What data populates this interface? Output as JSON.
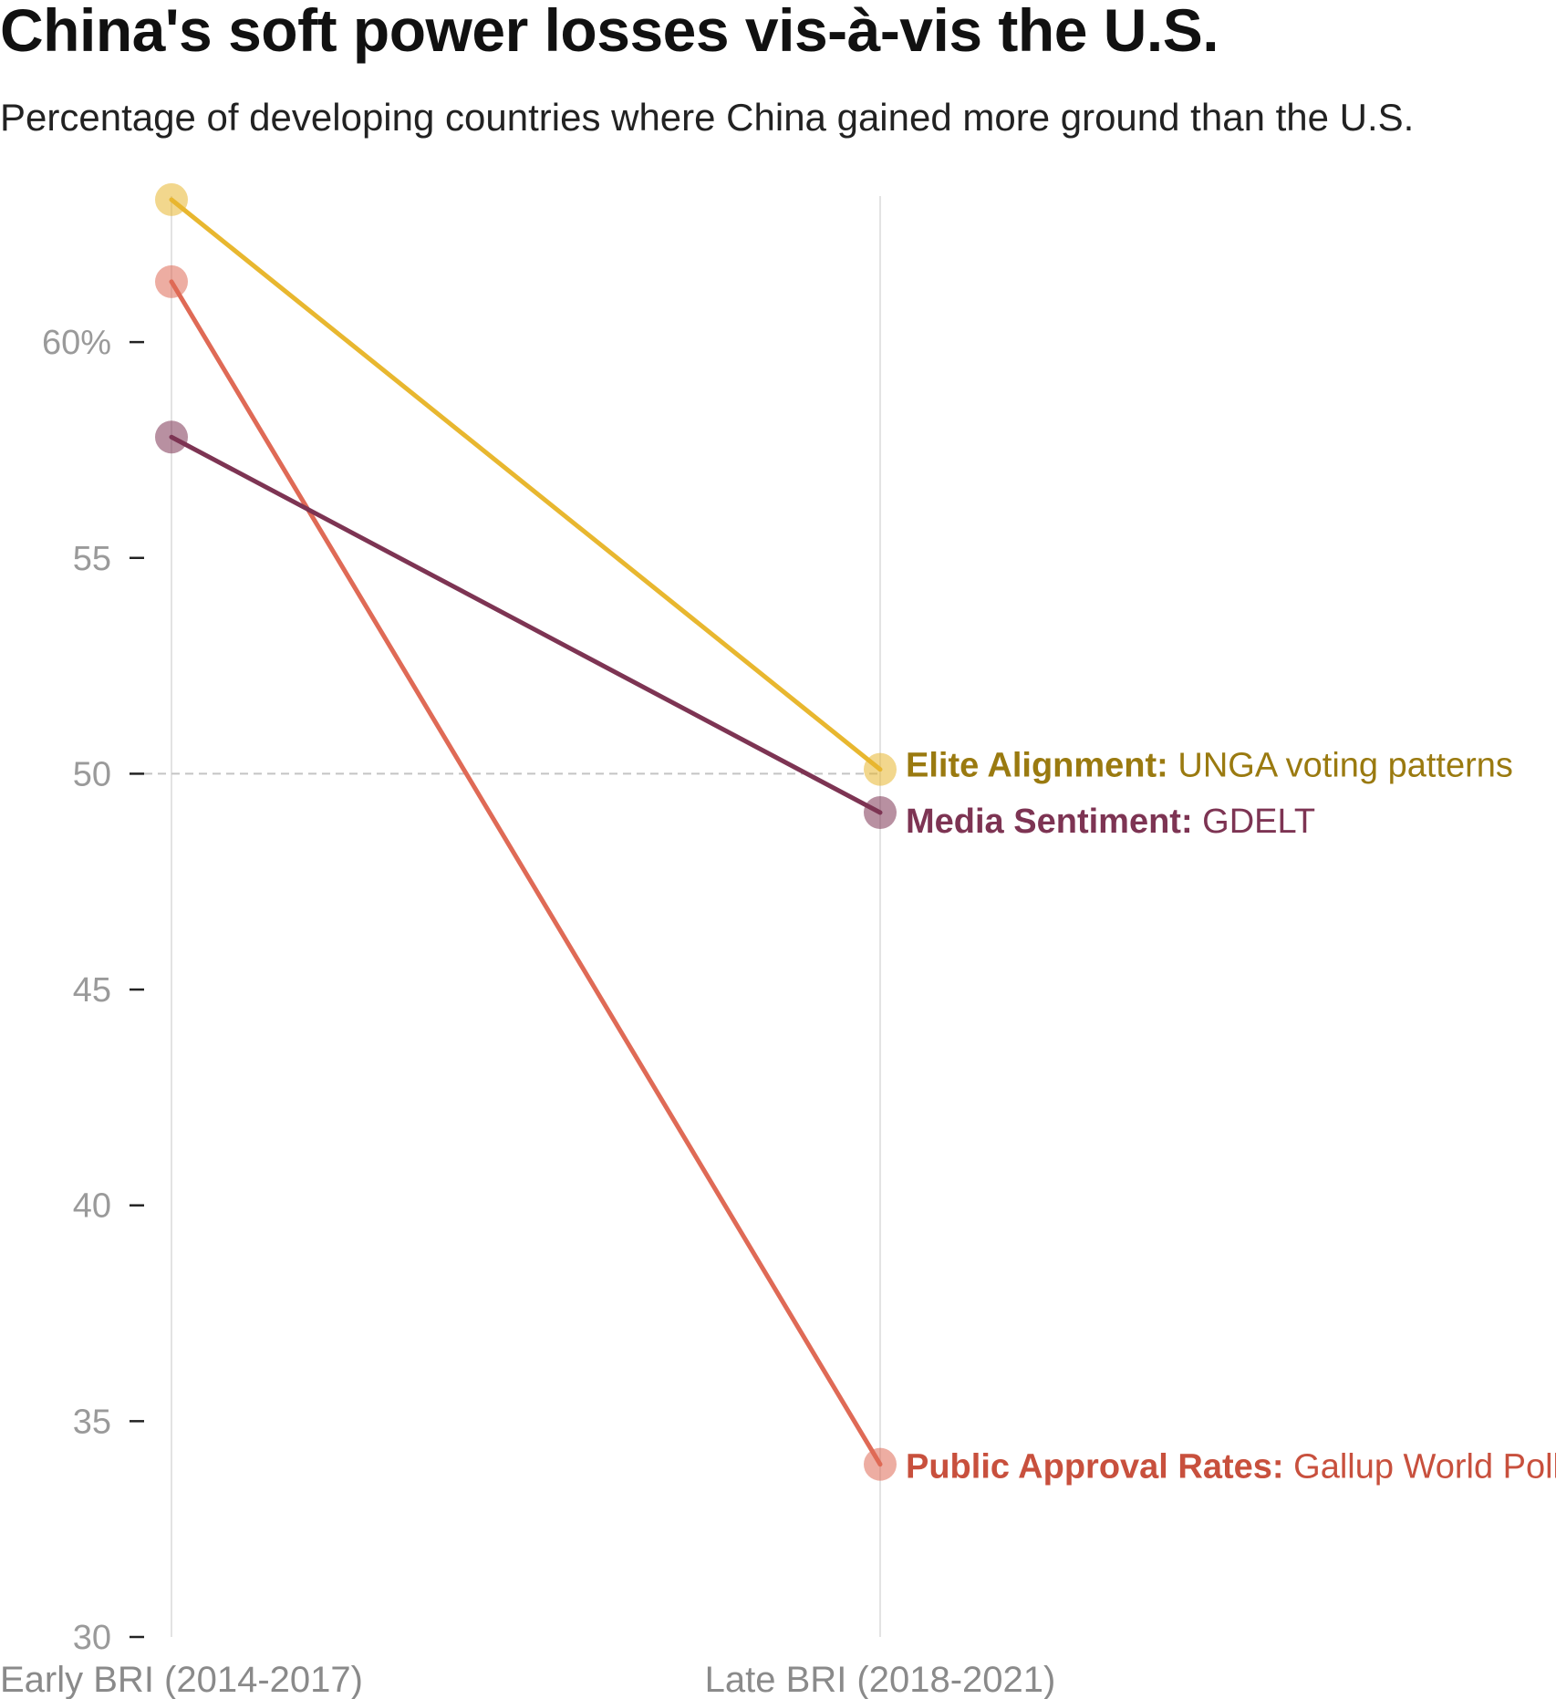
{
  "chart_data": {
    "type": "line",
    "title": "China's soft power losses vis-à-vis the U.S.",
    "subtitle": "Percentage of developing countries where China gained more ground than the U.S.",
    "categories": [
      "Early BRI (2014-2017)",
      "Late BRI (2018-2021)"
    ],
    "y_ticks": [
      {
        "value": 30,
        "label": "30"
      },
      {
        "value": 35,
        "label": "35"
      },
      {
        "value": 40,
        "label": "40"
      },
      {
        "value": 45,
        "label": "45"
      },
      {
        "value": 50,
        "label": "50"
      },
      {
        "value": 55,
        "label": "55"
      },
      {
        "value": 60,
        "label": "60%"
      }
    ],
    "ylim": [
      30,
      63.7
    ],
    "reference_line": 50,
    "grid": false,
    "series": [
      {
        "name_bold": "Elite Alignment:",
        "name_rest": " UNGA voting patterns",
        "values": [
          63.3,
          50.1
        ],
        "color": "#E8B72F",
        "label_color": "#9A7A10"
      },
      {
        "name_bold": "Public Approval Rates:",
        "name_rest": " Gallup World Poll",
        "values": [
          61.4,
          34.0
        ],
        "color": "#DF6A56",
        "label_color": "#C8503D"
      },
      {
        "name_bold": "Media Sentiment:",
        "name_rest": " GDELT",
        "values": [
          57.8,
          49.1
        ],
        "color": "#7D3453",
        "label_color": "#7D3453"
      }
    ]
  }
}
